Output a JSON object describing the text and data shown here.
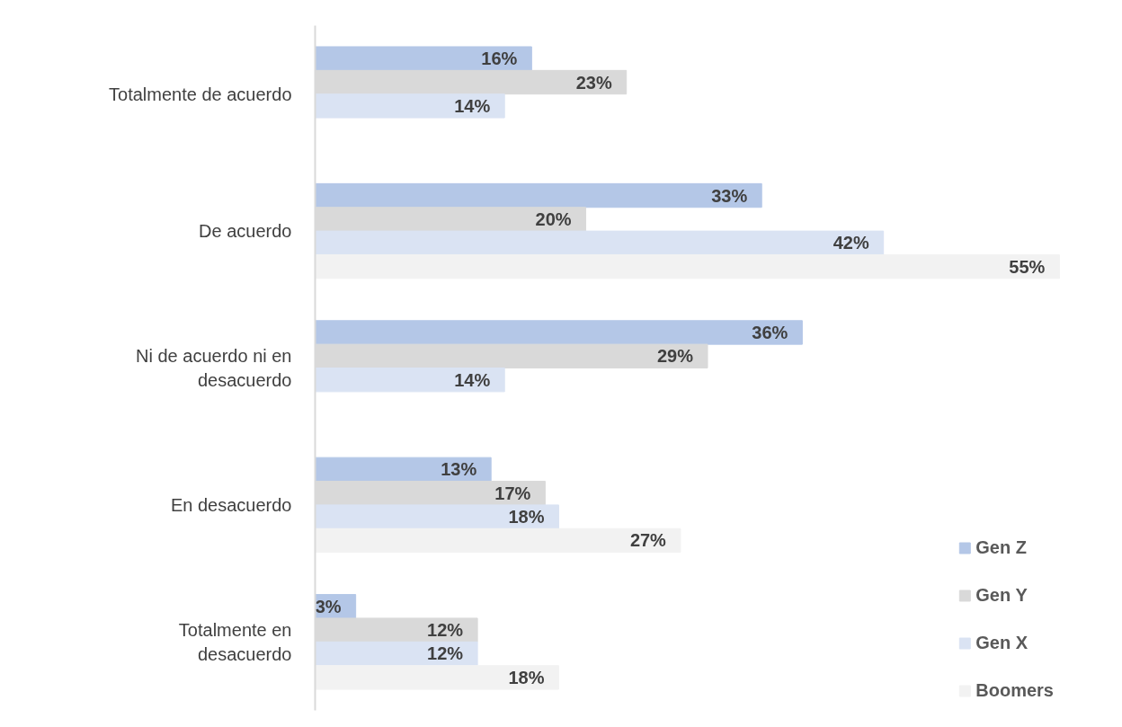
{
  "chart_data": {
    "type": "bar",
    "orientation": "horizontal",
    "categories": [
      "Totalmente de acuerdo",
      "De acuerdo",
      "Ni de acuerdo ni en desacuerdo",
      "En desacuerdo",
      "Totalmente en desacuerdo"
    ],
    "series": [
      {
        "name": "Gen Z",
        "color": "#b4c7e7",
        "values": [
          16,
          33,
          36,
          13,
          3
        ],
        "value_labels": [
          "16%",
          "33%",
          "36%",
          "13%",
          "3%"
        ]
      },
      {
        "name": "Gen Y",
        "color": "#d9d9d9",
        "values": [
          23,
          20,
          29,
          17,
          12
        ],
        "value_labels": [
          "23%",
          "20%",
          "29%",
          "17%",
          "12%"
        ]
      },
      {
        "name": "Gen X",
        "color": "#dae3f3",
        "values": [
          14,
          42,
          14,
          18,
          12
        ],
        "value_labels": [
          "14%",
          "42%",
          "14%",
          "18%",
          "12%"
        ]
      },
      {
        "name": "Boomers",
        "color": "#f2f2f2",
        "values": [
          null,
          55,
          null,
          27,
          18
        ],
        "value_labels": [
          null,
          "55%",
          null,
          "27%",
          "18%"
        ]
      }
    ],
    "legend": "bottom right",
    "grid": false
  }
}
